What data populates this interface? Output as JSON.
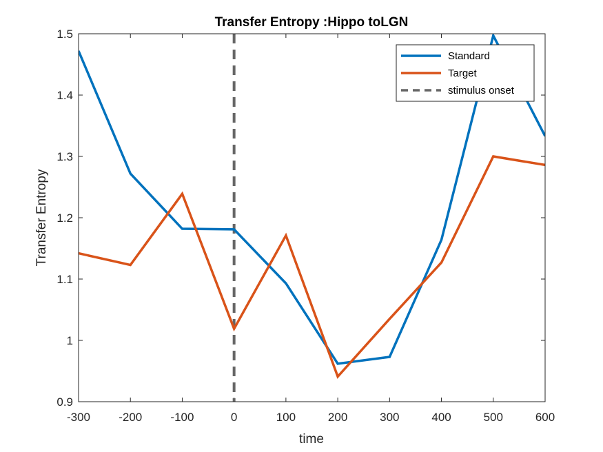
{
  "chart_data": {
    "type": "line",
    "title": "Transfer Entropy :Hippo toLGN",
    "xlabel": "time",
    "ylabel": "Transfer Entropy",
    "xlim": [
      -300,
      600
    ],
    "ylim": [
      0.9,
      1.5
    ],
    "x_ticks": [
      "-300",
      "-200",
      "-100",
      "0",
      "100",
      "200",
      "300",
      "400",
      "500",
      "600"
    ],
    "y_ticks": [
      "0.9",
      "1",
      "1.1",
      "1.2",
      "1.3",
      "1.4",
      "1.5"
    ],
    "x": [
      -300,
      -200,
      -100,
      0,
      100,
      200,
      300,
      400,
      500,
      600
    ],
    "series": [
      {
        "name": "Standard",
        "color": "#0072bd",
        "style": "solid",
        "values": [
          1.472,
          1.272,
          1.182,
          1.181,
          1.093,
          0.962,
          0.973,
          1.164,
          1.497,
          1.333
        ]
      },
      {
        "name": "Target",
        "color": "#d95319",
        "style": "solid",
        "values": [
          1.142,
          1.123,
          1.239,
          1.019,
          1.171,
          0.941,
          1.035,
          1.127,
          1.3,
          1.286
        ]
      }
    ],
    "reference_lines": [
      {
        "name": "stimulus onset",
        "x": 0,
        "color": "#666666",
        "style": "dashed"
      }
    ],
    "legend_position": "top-right",
    "grid": false
  }
}
